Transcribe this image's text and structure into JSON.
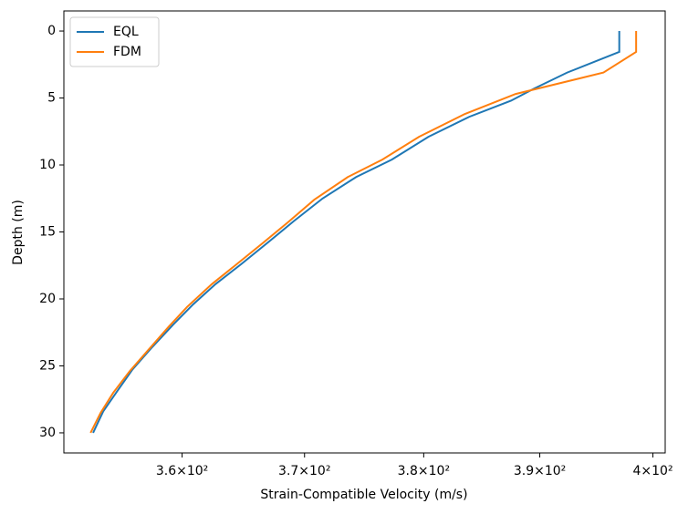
{
  "chart_data": {
    "type": "line",
    "xlabel": "Strain-Compatible Velocity (m/s)",
    "ylabel": "Depth (m)",
    "xscale": "log",
    "xlim": [
      350.6,
      401.1
    ],
    "xticks": [
      {
        "value": 360,
        "label": "3.6×10²"
      },
      {
        "value": 370,
        "label": "3.7×10²"
      },
      {
        "value": 380,
        "label": "3.8×10²"
      },
      {
        "value": 390,
        "label": "3.9×10²"
      },
      {
        "value": 400,
        "label": "4×10²"
      }
    ],
    "ylim": [
      31.5,
      -1.5
    ],
    "yticks": [
      0,
      5,
      10,
      15,
      20,
      25,
      30
    ],
    "legend": "upper left",
    "series": [
      {
        "name": "EQL",
        "color": "#1f77b4",
        "x": [
          397.0,
          397.0,
          392.4,
          389.5,
          387.5,
          383.9,
          380.4,
          377.3,
          374.3,
          371.5,
          369.1,
          367.1,
          364.8,
          362.7,
          360.9,
          359.3,
          357.6,
          356.0,
          354.8,
          353.7,
          352.9
        ],
        "values": [
          0,
          1.56,
          3.1,
          4.3,
          5.2,
          6.4,
          7.9,
          9.6,
          10.9,
          12.5,
          14.2,
          15.7,
          17.4,
          18.9,
          20.4,
          21.9,
          23.6,
          25.3,
          26.9,
          28.4,
          30.0
        ]
      },
      {
        "name": "FDM",
        "color": "#ff7f0e",
        "x": [
          398.5,
          398.5,
          395.6,
          387.9,
          383.5,
          379.6,
          376.5,
          373.6,
          370.8,
          368.6,
          366.6,
          364.3,
          362.4,
          360.4,
          358.9,
          357.3,
          355.8,
          354.5,
          353.5,
          352.7
        ],
        "values": [
          0,
          1.56,
          3.1,
          4.7,
          6.2,
          7.9,
          9.6,
          10.9,
          12.6,
          14.3,
          15.8,
          17.5,
          18.9,
          20.6,
          22.1,
          23.8,
          25.4,
          27.0,
          28.5,
          30.0
        ]
      }
    ]
  }
}
